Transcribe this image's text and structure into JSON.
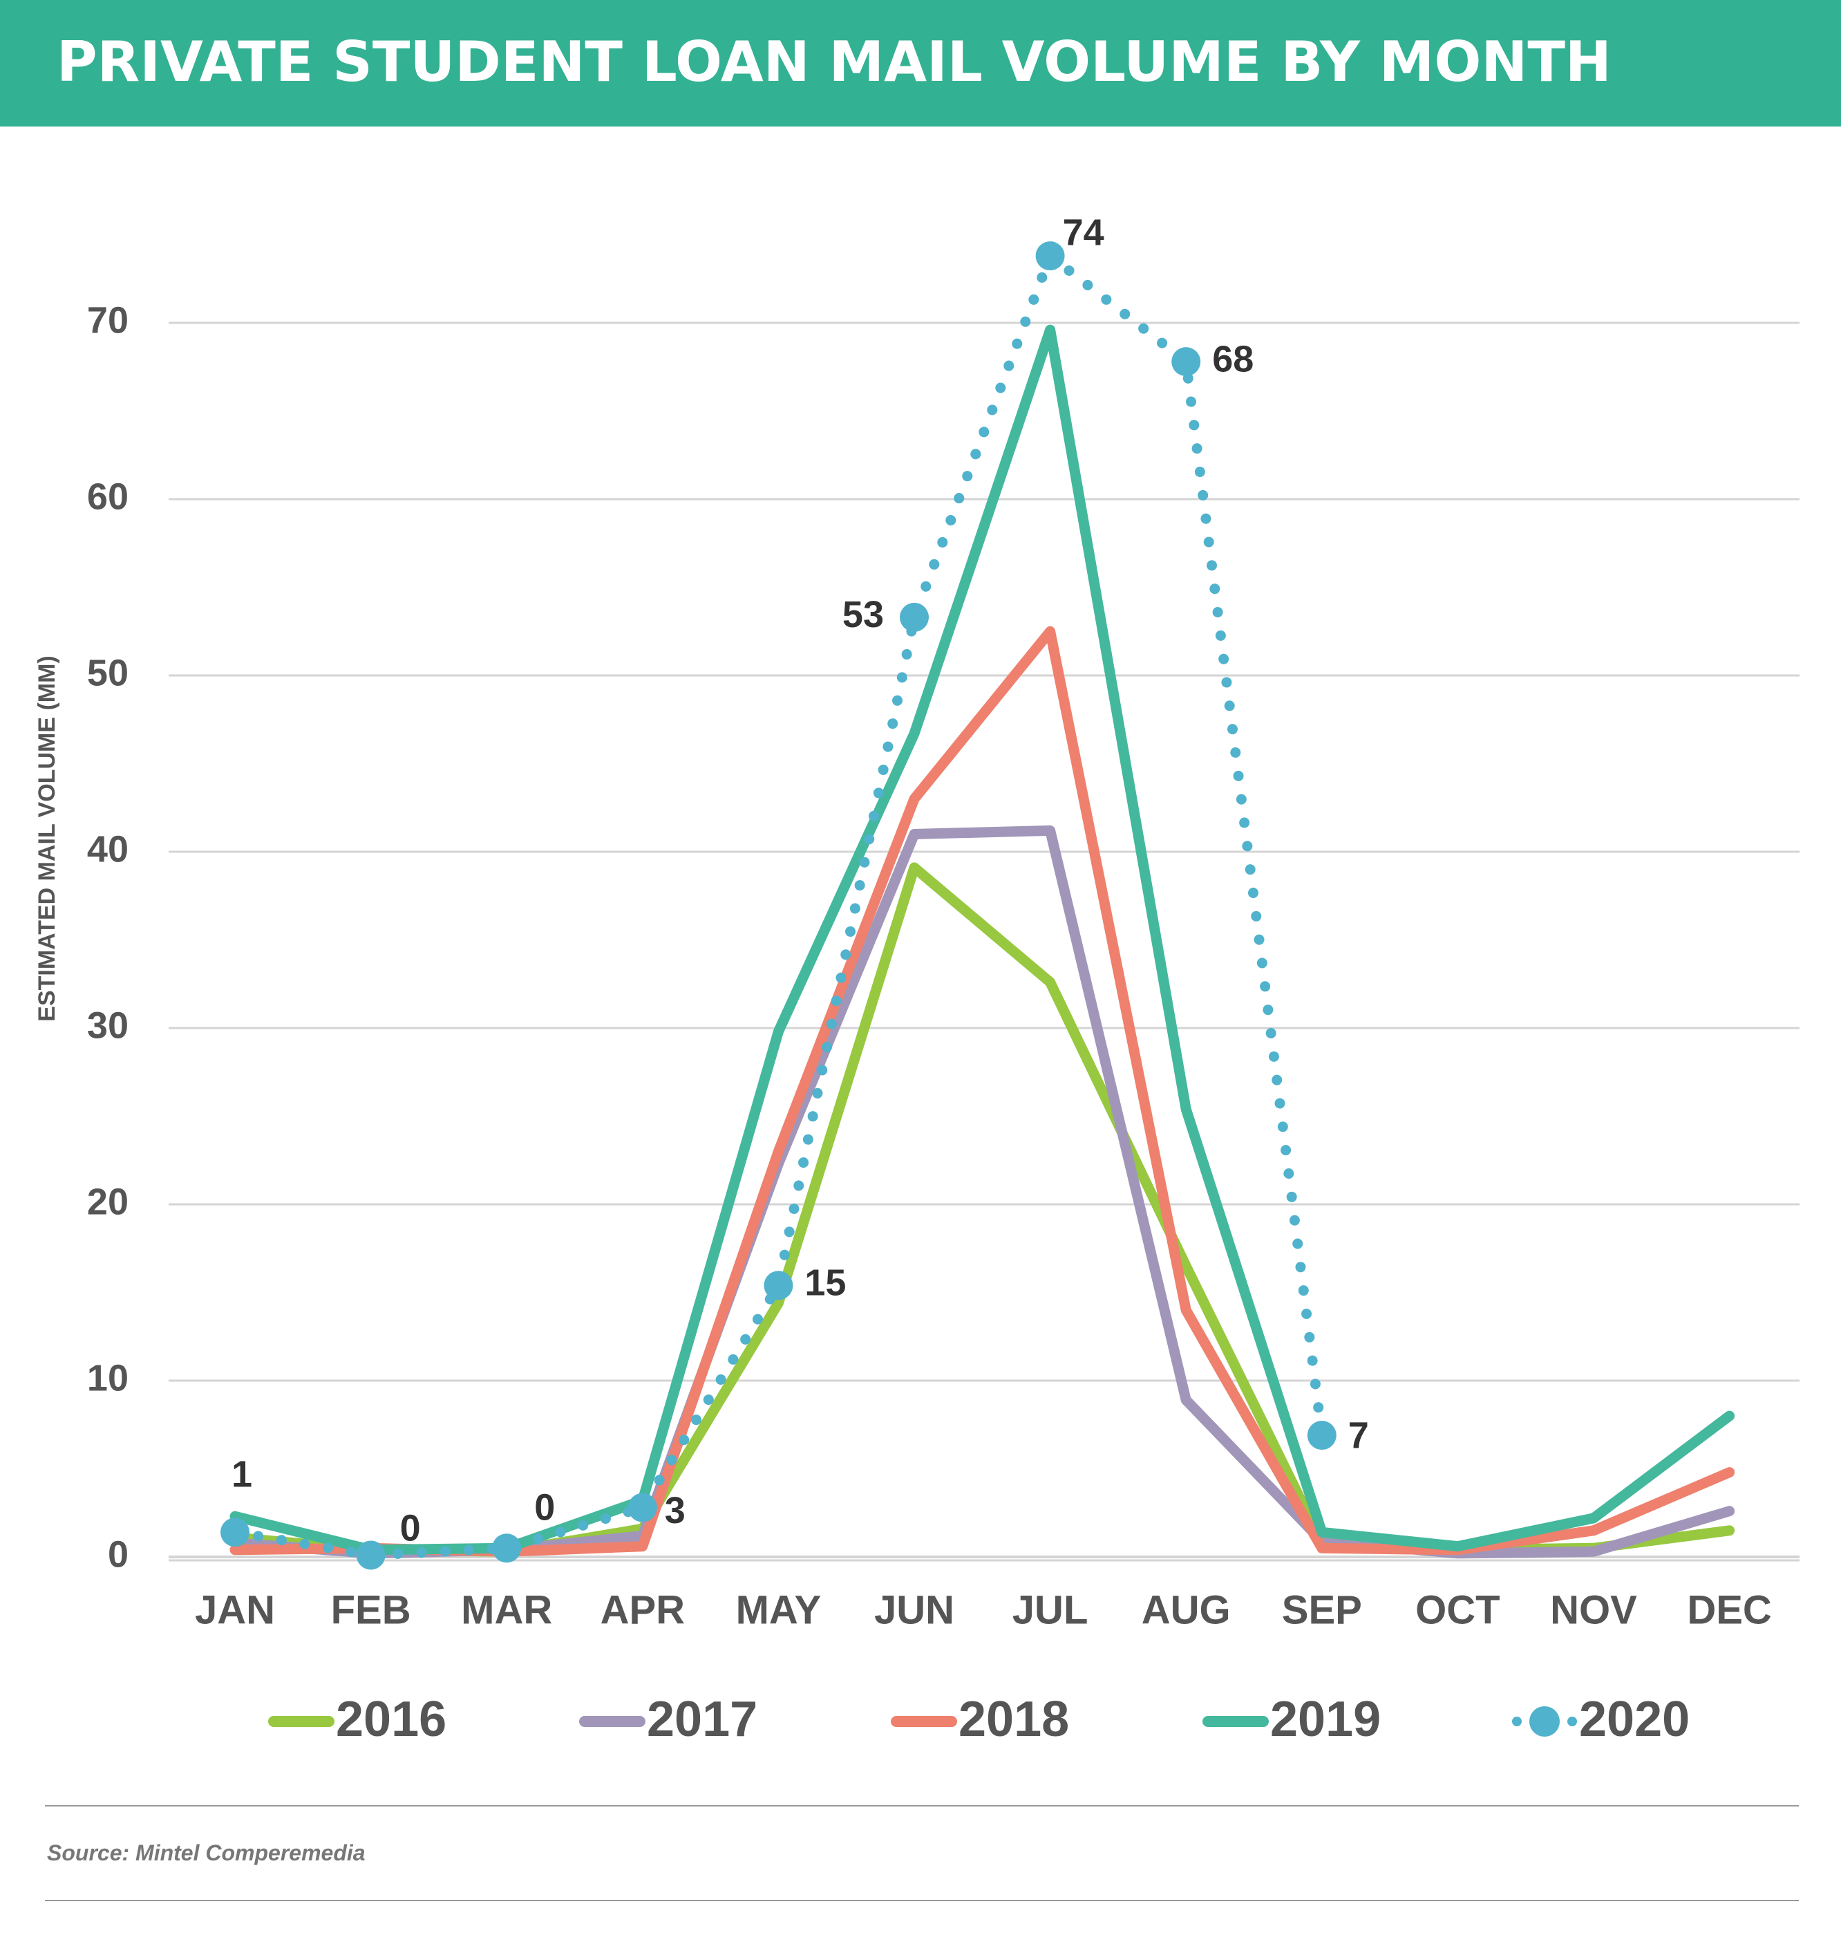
{
  "header": {
    "title": "PRIVATE STUDENT LOAN MAIL VOLUME BY MONTH",
    "background": "#33b193"
  },
  "footer": {
    "source": "Source: Mintel Comperemedia"
  },
  "chart_data": {
    "type": "line",
    "title": "PRIVATE STUDENT LOAN MAIL VOLUME BY MONTH",
    "xlabel": "",
    "ylabel": "ESTIMATED MAIL VOLUME (MM)",
    "ylim": [
      0,
      70
    ],
    "yticks": [
      0,
      10,
      20,
      30,
      40,
      50,
      60,
      70
    ],
    "grid": true,
    "legend_position": "bottom",
    "categories": [
      "JAN",
      "FEB",
      "MAR",
      "APR",
      "MAY",
      "JUN",
      "JUL",
      "AUG",
      "SEP",
      "OCT",
      "NOV",
      "DEC"
    ],
    "series": [
      {
        "name": "2016",
        "color": "#97c83f",
        "style": "solid",
        "values": [
          1.1,
          0.4,
          0.3,
          1.6,
          14.4,
          39.1,
          32.6,
          16.5,
          0.8,
          0.4,
          0.5,
          1.5
        ]
      },
      {
        "name": "2017",
        "color": "#a196b9",
        "style": "solid",
        "values": [
          0.8,
          0.2,
          0.4,
          1.2,
          22.3,
          41.0,
          41.2,
          8.9,
          0.9,
          0.2,
          0.3,
          2.6
        ]
      },
      {
        "name": "2018",
        "color": "#ee806d",
        "style": "solid",
        "values": [
          0.4,
          0.5,
          0.3,
          0.6,
          23.0,
          43.0,
          52.5,
          14.0,
          0.5,
          0.4,
          1.5,
          4.8
        ]
      },
      {
        "name": "2019",
        "color": "#44b89c",
        "style": "solid",
        "values": [
          2.3,
          0.4,
          0.5,
          3.2,
          29.8,
          46.7,
          69.6,
          25.4,
          1.4,
          0.6,
          2.2,
          8.0
        ]
      },
      {
        "name": "2020",
        "color": "#50b2cc",
        "style": "dotted-with-markers",
        "values": [
          1.4,
          0.1,
          0.5,
          2.8,
          15.4,
          53.3,
          73.8,
          67.8,
          6.9,
          null,
          null,
          null
        ],
        "data_labels": [
          "1",
          "0",
          "0",
          "3",
          "15",
          "53",
          "74",
          "68",
          "7"
        ]
      }
    ]
  }
}
